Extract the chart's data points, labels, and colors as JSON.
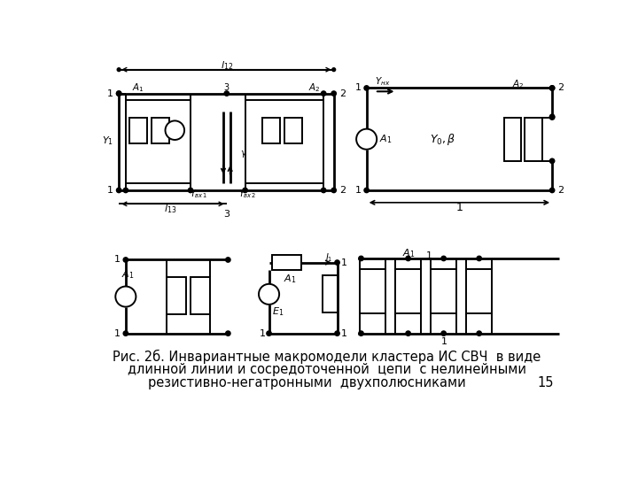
{
  "title_line1": "Рис. 2б. Инвариантные макромодели кластера ИС СВЧ  в виде",
  "title_line2": "длинной линии и сосредоточенной  цепи  с нелинейными",
  "title_line3": "резистивно-негатронными  двухполюсниками",
  "page_num": "15",
  "bg_color": "#ffffff",
  "line_color": "#000000",
  "text_color": "#000000",
  "figsize": [
    7.2,
    5.4
  ],
  "dpi": 100
}
